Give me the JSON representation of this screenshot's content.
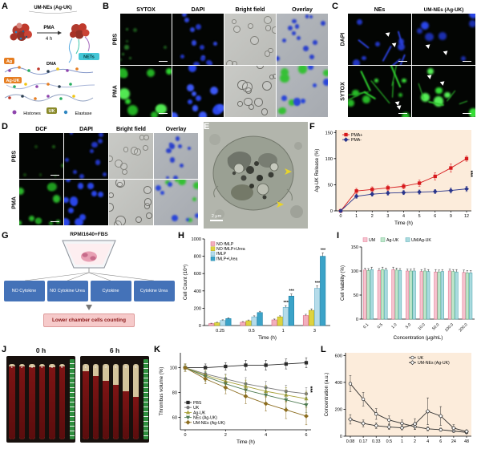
{
  "panelA": {
    "label": "A",
    "title": "UM-NEs (Ag-UK)",
    "arrow_top": "PMA",
    "arrow_bottom": "4 h",
    "tags": {
      "ag": "Ag",
      "dna": "DNA",
      "nets": "NETs",
      "ag_uk": "Ag-UK",
      "histones": "Histones",
      "uk": "UK",
      "elastase": "Elastase"
    }
  },
  "panelB": {
    "label": "B",
    "columns": [
      "SYTOX",
      "DAPI",
      "Bright field",
      "Overlay"
    ],
    "rows": [
      "PBS",
      "PMA"
    ]
  },
  "panelC": {
    "label": "C",
    "columns": [
      "NEs",
      "UM-NEs (Ag-UK)"
    ],
    "rows": [
      "DAPI",
      "SYTOX"
    ]
  },
  "panelD": {
    "label": "D",
    "columns": [
      "DCF",
      "DAPI",
      "Bright field",
      "Overlay"
    ],
    "rows": [
      "PBS",
      "PMA"
    ]
  },
  "panelE": {
    "label": "E",
    "scale_bar": "2 μm"
  },
  "panelF": {
    "label": "F"
  },
  "panelG": {
    "label": "G",
    "top_label": "RPMI1640+FBS",
    "boxes": [
      "NO Cytokine",
      "NO Cytokine Urea",
      "Cytokine",
      "Cytokine Urea"
    ],
    "bottom_box": "Lower chamber cells counting"
  },
  "panelH": {
    "label": "H"
  },
  "panelI": {
    "label": "I"
  },
  "panelJ": {
    "label": "J",
    "time_labels": [
      "0 h",
      "6 h"
    ],
    "tube_numbers": [
      "1",
      "2",
      "3",
      "4",
      "5",
      "6"
    ]
  },
  "panelK": {
    "label": "K"
  },
  "panelL": {
    "label": "L"
  },
  "chart_data": [
    {
      "panel": "F",
      "type": "line",
      "xlabel": "Time (h)",
      "ylabel": "Ag-UK Release (%)",
      "x_labels": [
        "0",
        "1",
        "2",
        "3",
        "4",
        "5",
        "6",
        "9",
        "12"
      ],
      "ylim": [
        0,
        155
      ],
      "yticks": [
        0,
        50,
        100,
        150
      ],
      "plot_bg": "#fcecdb",
      "legend_pos": "tl",
      "sig_right": "***",
      "series": [
        {
          "name": "PMA+",
          "color": "#d7191c",
          "marker": "square",
          "values": [
            0,
            38,
            41,
            44,
            47,
            53,
            66,
            82,
            100
          ],
          "errors": [
            2,
            5,
            5,
            5,
            5,
            6,
            7,
            8,
            5
          ]
        },
        {
          "name": "PMA-",
          "color": "#28348b",
          "marker": "diamond",
          "values": [
            0,
            28,
            32,
            34,
            35,
            36,
            37,
            39,
            42
          ],
          "errors": [
            2,
            4,
            4,
            4,
            4,
            4,
            4,
            5,
            5
          ]
        }
      ]
    },
    {
      "panel": "H",
      "type": "bar",
      "xlabel": "Time (h)",
      "ylabel": "Cell Count (10⁴)",
      "categories": [
        "0.25",
        "0.5",
        "1",
        "3"
      ],
      "ylim": [
        0,
        1000
      ],
      "yticks": [
        0,
        200,
        400,
        600,
        800,
        1000
      ],
      "legend_pos": "tl",
      "series": [
        {
          "name": "NO fMLP",
          "color": "#f2afbe",
          "edge": "#d96a85",
          "values": [
            22,
            38,
            65,
            115
          ],
          "errors": [
            5,
            8,
            10,
            15
          ]
        },
        {
          "name": "NO fMLP+Urea",
          "color": "#ded33f",
          "edge": "#b0a61e",
          "values": [
            32,
            55,
            100,
            175
          ],
          "errors": [
            6,
            9,
            12,
            18
          ]
        },
        {
          "name": "fMLP",
          "color": "#b5dcea",
          "edge": "#6aafc9",
          "values": [
            58,
            100,
            210,
            430
          ],
          "errors": [
            8,
            12,
            20,
            30
          ]
        },
        {
          "name": "fMLP+Urea",
          "color": "#3ba3c8",
          "edge": "#1b7fa5",
          "values": [
            80,
            150,
            340,
            800
          ],
          "errors": [
            10,
            15,
            25,
            40
          ]
        }
      ],
      "sig": [
        {
          "ci": 2,
          "si": 2,
          "text": "***"
        },
        {
          "ci": 2,
          "si": 3,
          "text": "***"
        },
        {
          "ci": 3,
          "si": 2,
          "text": "***"
        },
        {
          "ci": 3,
          "si": 3,
          "text": "***"
        }
      ]
    },
    {
      "panel": "I",
      "type": "bar",
      "xlabel": "Concentration (μg/mL)",
      "ylabel": "Cell viability (%)",
      "categories": [
        "0.1",
        "0.5",
        "1.0",
        "5.0",
        "10.0",
        "50.0",
        "100.0",
        "200.0"
      ],
      "ylim": [
        0,
        150
      ],
      "yticks": [
        0,
        50,
        100,
        150
      ],
      "legend_pos": "th",
      "xtick_rotate": -45,
      "series": [
        {
          "name": "UM",
          "color": "#f6c3cf",
          "edge": "#e57792",
          "values": [
            102,
            101,
            103,
            100,
            99,
            98,
            100,
            97
          ],
          "errors": [
            4,
            4,
            5,
            4,
            4,
            5,
            4,
            5
          ]
        },
        {
          "name": "Ag-UK",
          "color": "#bfe6cb",
          "edge": "#6dbb8a",
          "values": [
            101,
            103,
            102,
            100,
            100,
            98,
            99,
            96
          ],
          "errors": [
            4,
            5,
            4,
            4,
            5,
            4,
            4,
            5
          ]
        },
        {
          "name": "UM/Ag-UK",
          "color": "#aadbdf",
          "edge": "#55aab3",
          "values": [
            103,
            102,
            101,
            100,
            99,
            99,
            98,
            96
          ],
          "errors": [
            5,
            4,
            4,
            5,
            4,
            4,
            5,
            5
          ]
        }
      ]
    },
    {
      "panel": "K",
      "type": "line",
      "xlabel": "Time (h)",
      "ylabel": "Thrombus volume (%)",
      "x_labels": [
        "0",
        "1",
        "2",
        "3",
        "4",
        "5",
        "6"
      ],
      "xtick_show": [
        "0",
        "2",
        "4",
        "6"
      ],
      "ylim": [
        50,
        112
      ],
      "yticks": [
        60,
        80,
        100
      ],
      "legend_pos": "bl",
      "sig_right": "***",
      "series": [
        {
          "name": "PBS",
          "color": "#2b2b2b",
          "marker": "square",
          "values": [
            100,
            100,
            101,
            102,
            102,
            103,
            104
          ],
          "errors": [
            3,
            3,
            3,
            4,
            4,
            4,
            4
          ]
        },
        {
          "name": "UK",
          "color": "#7a7a7a",
          "marker": "circle",
          "values": [
            100,
            95,
            91,
            87,
            84,
            81,
            79
          ],
          "errors": [
            3,
            4,
            4,
            5,
            5,
            5,
            5
          ]
        },
        {
          "name": "Ag-UK",
          "color": "#a8a23a",
          "marker": "triangle",
          "values": [
            100,
            94,
            89,
            85,
            81,
            78,
            75
          ],
          "errors": [
            3,
            4,
            5,
            5,
            5,
            6,
            6
          ]
        },
        {
          "name": "NEs (Ag-UK)",
          "color": "#4f7b52",
          "marker": "tridown",
          "values": [
            100,
            93,
            87,
            82,
            78,
            74,
            70
          ],
          "errors": [
            3,
            4,
            5,
            5,
            6,
            6,
            6
          ]
        },
        {
          "name": "UM-NEs (Ag-UK)",
          "color": "#8c6d1f",
          "marker": "diamond",
          "values": [
            100,
            91,
            84,
            77,
            71,
            66,
            61
          ],
          "errors": [
            3,
            4,
            5,
            6,
            6,
            7,
            7
          ]
        }
      ]
    },
    {
      "panel": "L",
      "type": "line",
      "xlabel": "",
      "ylabel": "Concentration (a.u.)",
      "x_labels": [
        "0.08",
        "0.17",
        "0.33",
        "0.5",
        "1",
        "2",
        "4",
        "6",
        "24",
        "48"
      ],
      "ylim": [
        0,
        620
      ],
      "yticks": [
        0,
        200,
        400,
        600
      ],
      "plot_bg": "#fcecdb",
      "legend_pos": "tr",
      "series": [
        {
          "name": "UK",
          "color": "#2b2b2b",
          "marker": "circle-open",
          "values": [
            390,
            275,
            165,
            120,
            95,
            70,
            55,
            48,
            38,
            28
          ],
          "errors": [
            60,
            50,
            40,
            30,
            25,
            20,
            15,
            12,
            10,
            8
          ]
        },
        {
          "name": "UM-NEs (Ag-UK)",
          "color": "#2b2b2b",
          "marker": "diamond-open",
          "values": [
            125,
            95,
            78,
            68,
            62,
            90,
            185,
            150,
            60,
            35
          ],
          "errors": [
            35,
            25,
            20,
            18,
            15,
            40,
            100,
            70,
            25,
            12
          ]
        }
      ]
    }
  ]
}
